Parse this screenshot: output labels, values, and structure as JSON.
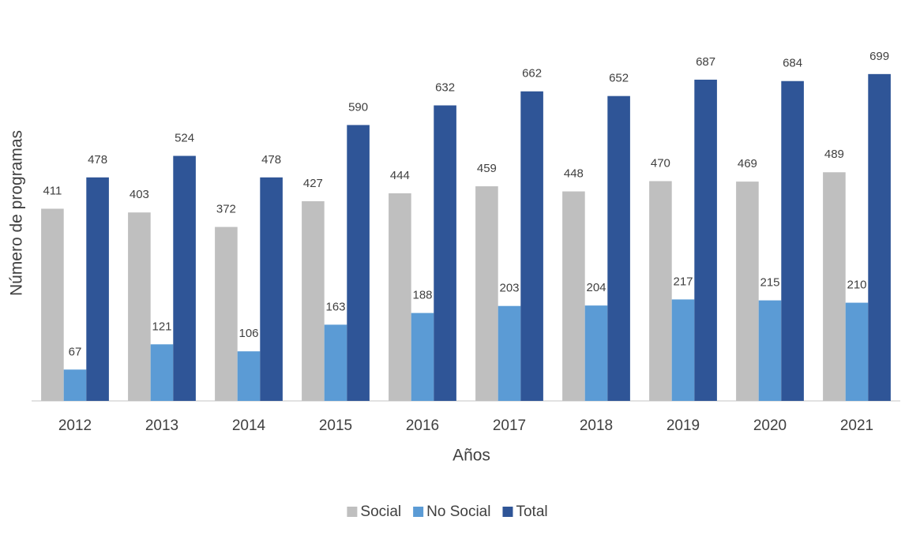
{
  "chart_data": {
    "type": "bar",
    "x_label": "Años",
    "y_label": "Número de programas",
    "categories": [
      "2012",
      "2013",
      "2014",
      "2015",
      "2016",
      "2017",
      "2018",
      "2019",
      "2020",
      "2021"
    ],
    "series": [
      {
        "name": "Social",
        "color": "#bfbfbf",
        "values": [
          411,
          403,
          372,
          427,
          444,
          459,
          448,
          470,
          469,
          489
        ]
      },
      {
        "name": "No Social",
        "color": "#5b9bd5",
        "values": [
          67,
          121,
          106,
          163,
          188,
          203,
          204,
          217,
          215,
          210
        ]
      },
      {
        "name": "Total",
        "color": "#2f5597",
        "values": [
          478,
          524,
          478,
          590,
          632,
          662,
          652,
          687,
          684,
          699
        ]
      }
    ],
    "ylim": [
      0,
      800
    ],
    "legend": "bottom"
  }
}
